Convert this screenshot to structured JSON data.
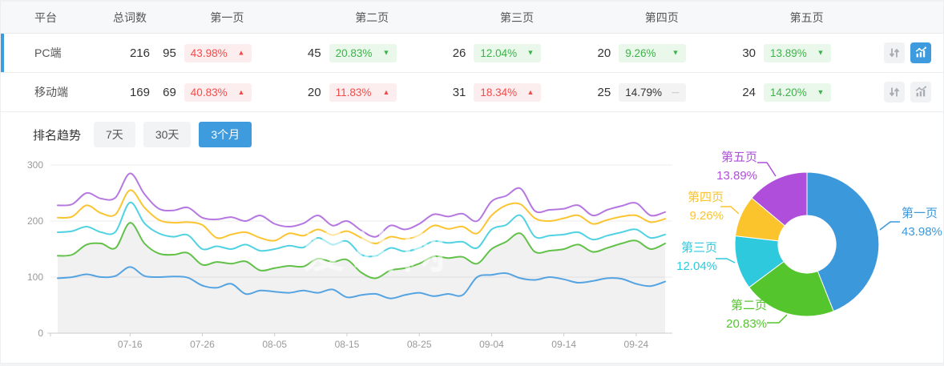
{
  "colors": {
    "accent": "#3E9BDE",
    "up_text": "#F14C4B",
    "up_bg": "#FCEDEE",
    "down_text": "#3DB24A",
    "down_bg": "#EAF8EB",
    "flat_text": "#333333",
    "flat_bg": "#F3F3F4"
  },
  "table": {
    "headers": [
      "平台",
      "总词数",
      "第一页",
      "第二页",
      "第三页",
      "第四页",
      "第五页"
    ],
    "rows": [
      {
        "platform": "PC端",
        "total": "216",
        "selected": true,
        "pages": [
          {
            "count": "95",
            "pct": "43.98%",
            "trend": "up"
          },
          {
            "count": "45",
            "pct": "20.83%",
            "trend": "down"
          },
          {
            "count": "26",
            "pct": "12.04%",
            "trend": "down"
          },
          {
            "count": "20",
            "pct": "9.26%",
            "trend": "down"
          },
          {
            "count": "30",
            "pct": "13.89%",
            "trend": "down"
          }
        ]
      },
      {
        "platform": "移动端",
        "total": "169",
        "selected": false,
        "pages": [
          {
            "count": "69",
            "pct": "40.83%",
            "trend": "up"
          },
          {
            "count": "20",
            "pct": "11.83%",
            "trend": "up"
          },
          {
            "count": "31",
            "pct": "18.34%",
            "trend": "up"
          },
          {
            "count": "25",
            "pct": "14.79%",
            "trend": "flat"
          },
          {
            "count": "24",
            "pct": "14.20%",
            "trend": "down"
          }
        ]
      }
    ]
  },
  "trend": {
    "title": "排名趋势",
    "tabs": [
      {
        "label": "7天",
        "active": false
      },
      {
        "label": "30天",
        "active": false
      },
      {
        "label": "3个月",
        "active": true
      }
    ]
  },
  "chart_data": [
    {
      "type": "line",
      "title": "排名趋势 (3个月)",
      "watermark": "爱站网",
      "ylim": [
        0,
        300
      ],
      "y_ticks": [
        0,
        100,
        200,
        300
      ],
      "grid": true,
      "x_tick_labels": [
        "07-16",
        "07-26",
        "08-05",
        "08-15",
        "08-25",
        "09-04",
        "09-14",
        "09-24"
      ],
      "x_tick_indices": [
        5,
        10,
        15,
        20,
        25,
        30,
        35,
        40
      ],
      "series": [
        {
          "name": "series-5",
          "color": "#B678E0",
          "area": false,
          "values": [
            228,
            230,
            250,
            240,
            242,
            285,
            248,
            222,
            219,
            224,
            206,
            203,
            207,
            200,
            210,
            195,
            190,
            196,
            210,
            192,
            200,
            183,
            172,
            192,
            185,
            195,
            212,
            208,
            213,
            200,
            235,
            245,
            258,
            218,
            220,
            222,
            228,
            210,
            220,
            227,
            232,
            210,
            216
          ]
        },
        {
          "name": "series-4",
          "color": "#FBC531",
          "area": false,
          "values": [
            206,
            208,
            228,
            214,
            212,
            255,
            224,
            202,
            197,
            198,
            193,
            170,
            176,
            180,
            170,
            165,
            178,
            174,
            185,
            175,
            182,
            170,
            160,
            172,
            168,
            175,
            192,
            186,
            190,
            178,
            210,
            228,
            230,
            205,
            200,
            205,
            210,
            195,
            202,
            208,
            210,
            198,
            204
          ]
        },
        {
          "name": "series-3",
          "color": "#50D2E2",
          "area": false,
          "values": [
            180,
            182,
            190,
            180,
            181,
            233,
            196,
            178,
            172,
            175,
            150,
            155,
            150,
            158,
            147,
            150,
            156,
            153,
            170,
            158,
            164,
            140,
            138,
            152,
            146,
            152,
            164,
            161,
            163,
            152,
            185,
            193,
            210,
            172,
            174,
            176,
            180,
            167,
            174,
            180,
            185,
            170,
            176
          ]
        },
        {
          "name": "series-2",
          "color": "#62C149",
          "area": true,
          "values": [
            138,
            140,
            158,
            160,
            152,
            197,
            160,
            142,
            140,
            143,
            122,
            127,
            124,
            128,
            112,
            116,
            120,
            119,
            133,
            127,
            131,
            108,
            98,
            112,
            116,
            124,
            137,
            134,
            136,
            124,
            150,
            163,
            178,
            145,
            147,
            150,
            158,
            145,
            152,
            160,
            165,
            150,
            160
          ]
        },
        {
          "name": "series-1",
          "color": "#55A4E1",
          "area": false,
          "values": [
            98,
            100,
            105,
            100,
            102,
            118,
            102,
            100,
            101,
            99,
            85,
            81,
            88,
            70,
            76,
            74,
            72,
            76,
            72,
            78,
            64,
            68,
            70,
            62,
            68,
            72,
            66,
            70,
            68,
            100,
            104,
            107,
            98,
            95,
            100,
            96,
            90,
            93,
            98,
            97,
            88,
            84,
            92
          ]
        }
      ]
    },
    {
      "type": "pie",
      "donut": true,
      "slices": [
        {
          "label": "第一页",
          "value": 43.98,
          "display": "43.98%",
          "color": "#3B98DB"
        },
        {
          "label": "第二页",
          "value": 20.83,
          "display": "20.83%",
          "color": "#54C52D"
        },
        {
          "label": "第三页",
          "value": 12.04,
          "display": "12.04%",
          "color": "#2EC9DD"
        },
        {
          "label": "第四页",
          "value": 9.26,
          "display": "9.26%",
          "color": "#FBC42C"
        },
        {
          "label": "第五页",
          "value": 13.89,
          "display": "13.89%",
          "color": "#AE4EDB"
        }
      ]
    }
  ]
}
